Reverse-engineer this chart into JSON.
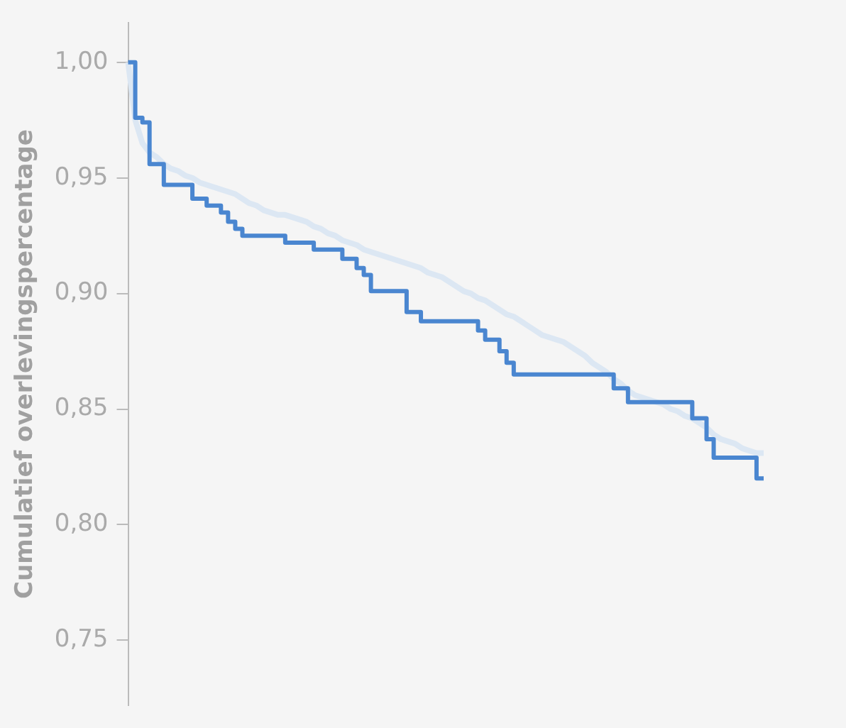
{
  "chart_data": {
    "type": "step",
    "ylabel": "Cumulatief overlevingspercentage",
    "categories": [
      null,
      null,
      null,
      null,
      null,
      null,
      null,
      null,
      null,
      null,
      null,
      null,
      null,
      null,
      null,
      null,
      null,
      null,
      null,
      null,
      null,
      null,
      null,
      null,
      null,
      null,
      null,
      null,
      null,
      null,
      null,
      null,
      null,
      null,
      null,
      null,
      null,
      null,
      null,
      null,
      null,
      null,
      null,
      null,
      null,
      null,
      null,
      null,
      null,
      null,
      null,
      null,
      null,
      null,
      null,
      null,
      null,
      null,
      null,
      null,
      null,
      null,
      null,
      null,
      null,
      null,
      null,
      null,
      null,
      null,
      null,
      null,
      null,
      null,
      null,
      null,
      null,
      null,
      null,
      null,
      null,
      null,
      null,
      null,
      null,
      null,
      null,
      null,
      null,
      null
    ],
    "series": [
      {
        "type": "line",
        "color": "#dce7f3",
        "values": [
          1.0,
          0.975,
          0.965,
          0.961,
          0.959,
          0.956,
          0.954,
          0.953,
          0.951,
          0.95,
          0.948,
          0.947,
          0.946,
          0.945,
          0.944,
          0.943,
          0.941,
          0.939,
          0.938,
          0.936,
          0.935,
          0.934,
          0.934,
          0.933,
          0.932,
          0.931,
          0.929,
          0.928,
          0.926,
          0.925,
          0.923,
          0.922,
          0.921,
          0.919,
          0.918,
          0.917,
          0.916,
          0.915,
          0.914,
          0.913,
          0.912,
          0.911,
          0.909,
          0.908,
          0.907,
          0.905,
          0.903,
          0.901,
          0.9,
          0.898,
          0.897,
          0.895,
          0.893,
          0.891,
          0.89,
          0.888,
          0.886,
          0.884,
          0.882,
          0.881,
          0.88,
          0.879,
          0.877,
          0.875,
          0.873,
          0.87,
          0.868,
          0.866,
          0.863,
          0.861,
          0.858,
          0.856,
          0.855,
          0.854,
          0.853,
          0.852,
          0.85,
          0.849,
          0.847,
          0.846,
          0.844,
          0.842,
          0.839,
          0.837,
          0.836,
          0.835,
          0.833,
          0.832,
          0.831,
          0.831
        ]
      },
      {
        "color": "#4a86d0",
        "values": [
          1.0,
          0.976,
          0.974,
          0.956,
          0.956,
          0.947,
          0.947,
          0.947,
          0.947,
          0.941,
          0.941,
          0.938,
          0.938,
          0.935,
          0.931,
          0.928,
          0.925,
          0.925,
          0.925,
          0.925,
          0.925,
          0.925,
          0.922,
          0.922,
          0.922,
          0.922,
          0.919,
          0.919,
          0.919,
          0.919,
          0.915,
          0.915,
          0.911,
          0.908,
          0.901,
          0.901,
          0.901,
          0.901,
          0.901,
          0.892,
          0.892,
          0.888,
          0.888,
          0.888,
          0.888,
          0.888,
          0.888,
          0.888,
          0.888,
          0.884,
          0.88,
          0.88,
          0.875,
          0.87,
          0.865,
          0.865,
          0.865,
          0.865,
          0.865,
          0.865,
          0.865,
          0.865,
          0.865,
          0.865,
          0.865,
          0.865,
          0.865,
          0.865,
          0.859,
          0.859,
          0.853,
          0.853,
          0.853,
          0.853,
          0.853,
          0.853,
          0.853,
          0.853,
          0.853,
          0.846,
          0.846,
          0.837,
          0.829,
          0.829,
          0.829,
          0.829,
          0.829,
          0.829,
          0.82,
          0.82
        ]
      }
    ],
    "ylim": [
      0.722,
      1.017
    ],
    "yticks": [
      {
        "value": 0.75,
        "label": "0,75"
      },
      {
        "value": 0.8,
        "label": "0,80"
      },
      {
        "value": 0.85,
        "label": "0,85"
      },
      {
        "value": 0.9,
        "label": "0,90"
      },
      {
        "value": 0.95,
        "label": "0,95"
      },
      {
        "value": 1.0,
        "label": "1,00"
      }
    ],
    "tick_labels": "y"
  }
}
